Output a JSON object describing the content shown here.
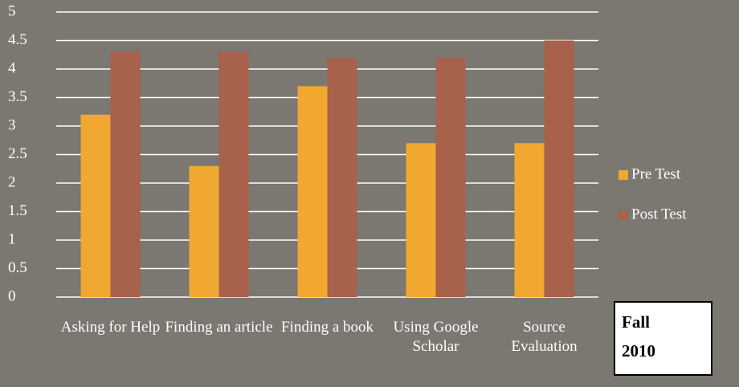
{
  "chart_data": {
    "type": "bar",
    "categories": [
      "Asking for Help",
      "Finding an article",
      "Finding a book",
      "Using Google Scholar",
      "Source Evaluation"
    ],
    "series": [
      {
        "name": "Pre Test",
        "color": "#f0a830",
        "values": [
          3.2,
          2.3,
          3.7,
          2.7,
          2.7
        ]
      },
      {
        "name": "Post Test",
        "color": "#a8614b",
        "values": [
          4.3,
          4.3,
          4.2,
          4.2,
          4.5
        ]
      }
    ],
    "ylim": [
      0,
      5
    ],
    "yticks": [
      0,
      0.5,
      1,
      1.5,
      2,
      2.5,
      3,
      3.5,
      4,
      4.5,
      5
    ],
    "grid": true,
    "legend": "right",
    "annotation": "Fall 2010"
  }
}
